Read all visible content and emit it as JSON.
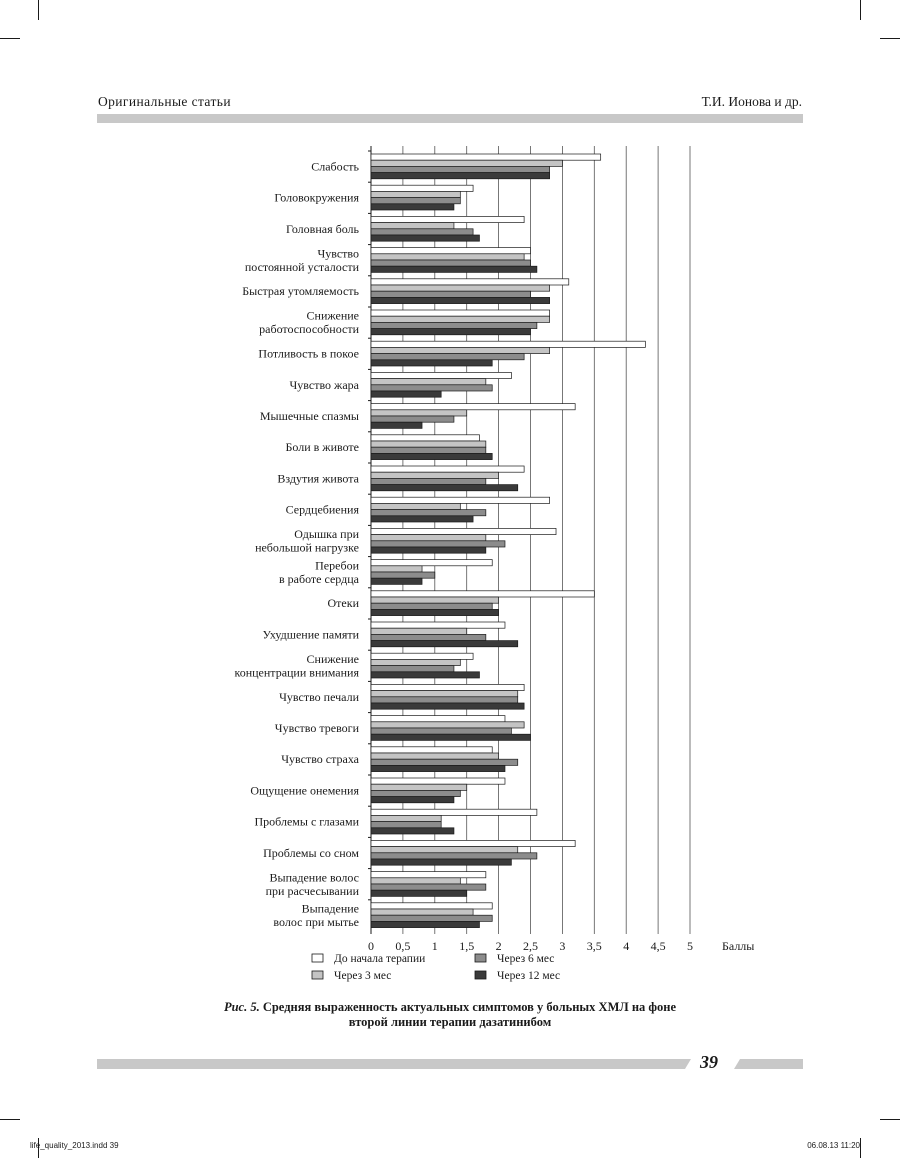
{
  "header": {
    "left": "Оригинальные статьи",
    "right": "Т.И. Ионова и др."
  },
  "chart_data": {
    "type": "bar",
    "orientation": "horizontal",
    "xlabel": "Баллы",
    "xlim": [
      0,
      5
    ],
    "xticks": [
      "0",
      "0,5",
      "1",
      "1,5",
      "2",
      "2,5",
      "3",
      "3,5",
      "4",
      "4,5",
      "5"
    ],
    "grid": true,
    "legend_position": "bottom",
    "categories": [
      [
        "Слабость"
      ],
      [
        "Головокружения"
      ],
      [
        "Головная боль"
      ],
      [
        "Чувство",
        "постоянной усталости"
      ],
      [
        "Быстрая утомляемость"
      ],
      [
        "Снижение",
        "работоспособности"
      ],
      [
        "Потливость в покое"
      ],
      [
        "Чувство жара"
      ],
      [
        "Мышечные спазмы"
      ],
      [
        "Боли в животе"
      ],
      [
        "Вздутия живота"
      ],
      [
        "Сердцебиения"
      ],
      [
        "Одышка при",
        "небольшой нагрузке"
      ],
      [
        "Перебои",
        "в работе сердца"
      ],
      [
        "Отеки"
      ],
      [
        "Ухудшение памяти"
      ],
      [
        "Снижение",
        "концентрации внимания"
      ],
      [
        "Чувство печали"
      ],
      [
        "Чувство тревоги"
      ],
      [
        "Чувство страха"
      ],
      [
        "Ощущение онемения"
      ],
      [
        "Проблемы с глазами"
      ],
      [
        "Проблемы со сном"
      ],
      [
        "Выпадение волос",
        "при расчесывании"
      ],
      [
        "Выпадение",
        "волос при мытье"
      ]
    ],
    "series": [
      {
        "name": "До начала терапии",
        "color": "#ffffff",
        "values": [
          3.6,
          1.6,
          2.4,
          2.5,
          3.1,
          2.8,
          4.3,
          2.2,
          3.2,
          1.7,
          2.4,
          2.8,
          2.9,
          1.9,
          3.5,
          2.1,
          1.6,
          2.4,
          2.1,
          1.9,
          2.1,
          2.6,
          3.2,
          1.8,
          1.9
        ]
      },
      {
        "name": "Через 3 мес",
        "color": "#c4c4c4",
        "values": [
          3.0,
          1.4,
          1.3,
          2.4,
          2.8,
          2.8,
          2.8,
          1.8,
          1.5,
          1.8,
          2.0,
          1.4,
          1.8,
          0.8,
          2.0,
          1.5,
          1.4,
          2.3,
          2.4,
          2.0,
          1.5,
          1.1,
          2.3,
          1.4,
          1.6
        ]
      },
      {
        "name": "Через 6 мес",
        "color": "#8c8c8c",
        "values": [
          2.8,
          1.4,
          1.6,
          2.5,
          2.5,
          2.6,
          2.4,
          1.9,
          1.3,
          1.8,
          1.8,
          1.8,
          2.1,
          1.0,
          1.9,
          1.8,
          1.3,
          2.3,
          2.2,
          2.3,
          1.4,
          1.1,
          2.6,
          1.8,
          1.9
        ]
      },
      {
        "name": "Через 12 мес",
        "color": "#3a3a3a",
        "values": [
          2.8,
          1.3,
          1.7,
          2.6,
          2.8,
          2.5,
          1.9,
          1.1,
          0.8,
          1.9,
          2.3,
          1.6,
          1.8,
          0.8,
          2.0,
          2.3,
          1.7,
          2.4,
          2.5,
          2.1,
          1.3,
          1.3,
          2.2,
          1.5,
          1.7
        ]
      }
    ]
  },
  "caption": {
    "figure_label": "Рис. 5.",
    "text_line1": "Средняя выраженность актуальных симптомов у больных ХМЛ на фоне",
    "text_line2": "второй линии терапии дазатинибом"
  },
  "footer": {
    "page_number": "39",
    "slug_left": "life_quality_2013.indd 39",
    "slug_right": "06.08.13 11:20"
  }
}
